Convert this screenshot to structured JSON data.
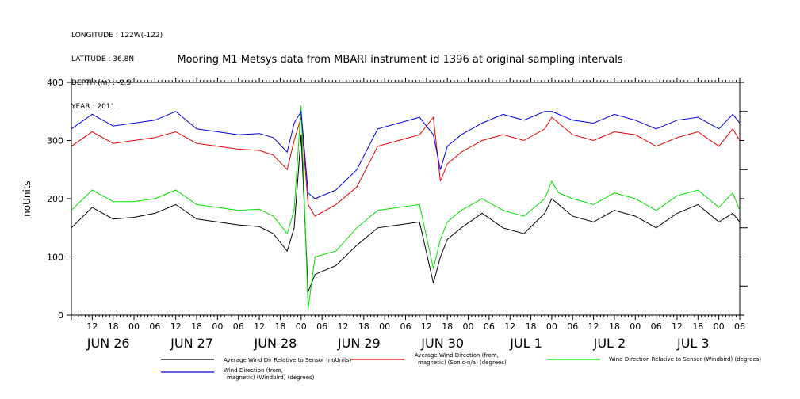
{
  "header": {
    "meta_lines": [
      "LONGITUDE : 122W(-122)",
      "LATITUDE : 36.8N",
      "DEPTH (m) : -2.5",
      "YEAR : 2011"
    ],
    "title": "Mooring M1 Metsys data from MBARI instrument id 1396 at original sampling intervals"
  },
  "colors": {
    "black": "#000000",
    "red": "#e00000",
    "green": "#00e000",
    "blue": "#0000e0"
  },
  "chart_data": {
    "type": "line",
    "ylabel": "noUnits",
    "ylim": [
      0,
      400
    ],
    "yticks": [
      0,
      100,
      200,
      300,
      400
    ],
    "xlim_hours": [
      0,
      192
    ],
    "x_hour_labels": [
      "12",
      "18",
      "00",
      "06",
      "12",
      "18",
      "00",
      "06",
      "12",
      "18",
      "00",
      "06",
      "12",
      "18",
      "00",
      "06",
      "12",
      "18",
      "00",
      "06",
      "12",
      "18",
      "00",
      "06",
      "12",
      "18",
      "00",
      "06",
      "12",
      "18",
      "00",
      "06"
    ],
    "x_day_labels": [
      "JUN 26",
      "JUN 27",
      "JUN 28",
      "JUN 29",
      "JUN 30",
      "JUL  1",
      "JUL  2",
      "JUL  3"
    ],
    "series": [
      {
        "name": "Average Wind Dir Relative to Sensor (noUnits)",
        "color": "#000000",
        "x": [
          0,
          6,
          12,
          18,
          24,
          30,
          36,
          42,
          48,
          54,
          58,
          62,
          64,
          66,
          68,
          70,
          76,
          82,
          88,
          94,
          100,
          104,
          106,
          108,
          112,
          118,
          124,
          130,
          136,
          138,
          140,
          144,
          150,
          156,
          162,
          168,
          174,
          180,
          186,
          190,
          192
        ],
        "y": [
          150,
          185,
          165,
          168,
          175,
          190,
          165,
          160,
          155,
          152,
          140,
          110,
          150,
          310,
          40,
          70,
          85,
          120,
          150,
          155,
          160,
          55,
          100,
          130,
          150,
          175,
          150,
          140,
          175,
          200,
          190,
          170,
          160,
          180,
          170,
          150,
          175,
          190,
          160,
          175,
          160
        ]
      },
      {
        "name": "Average Wind Direction (from, magnetic) (Sonic-n/a) (degrees)",
        "color": "#e00000",
        "x": [
          0,
          6,
          12,
          18,
          24,
          30,
          36,
          42,
          48,
          54,
          58,
          62,
          64,
          66,
          68,
          70,
          76,
          82,
          88,
          94,
          100,
          104,
          106,
          108,
          112,
          118,
          124,
          130,
          136,
          138,
          140,
          144,
          150,
          156,
          162,
          168,
          174,
          180,
          186,
          190,
          192
        ],
        "y": [
          290,
          315,
          295,
          300,
          305,
          315,
          295,
          290,
          285,
          283,
          275,
          250,
          300,
          340,
          190,
          170,
          190,
          220,
          290,
          300,
          310,
          340,
          230,
          260,
          280,
          300,
          310,
          300,
          320,
          340,
          330,
          310,
          300,
          315,
          310,
          290,
          305,
          315,
          290,
          320,
          300
        ]
      },
      {
        "name": "Wind Direction Relative to Sensor (Windbird) (degrees)",
        "color": "#00e000",
        "x": [
          0,
          6,
          12,
          18,
          24,
          30,
          36,
          42,
          48,
          54,
          58,
          62,
          64,
          66,
          68,
          70,
          76,
          82,
          88,
          94,
          100,
          104,
          106,
          108,
          112,
          118,
          124,
          130,
          136,
          138,
          140,
          144,
          150,
          156,
          162,
          168,
          174,
          180,
          186,
          190,
          192
        ],
        "y": [
          180,
          215,
          195,
          195,
          200,
          215,
          190,
          185,
          180,
          182,
          170,
          140,
          180,
          360,
          10,
          100,
          110,
          150,
          180,
          185,
          190,
          80,
          130,
          160,
          180,
          200,
          180,
          170,
          200,
          230,
          210,
          200,
          190,
          210,
          200,
          180,
          205,
          215,
          185,
          210,
          180
        ]
      },
      {
        "name": "Wind Direction (from, magnetic) (Windbird) (degrees)",
        "color": "#0000e0",
        "x": [
          0,
          6,
          12,
          18,
          24,
          30,
          36,
          42,
          48,
          54,
          58,
          62,
          64,
          66,
          68,
          70,
          76,
          82,
          88,
          94,
          100,
          104,
          106,
          108,
          112,
          118,
          124,
          130,
          136,
          138,
          140,
          144,
          150,
          156,
          162,
          168,
          174,
          180,
          186,
          190,
          192
        ],
        "y": [
          320,
          345,
          325,
          330,
          335,
          350,
          320,
          315,
          310,
          312,
          305,
          280,
          330,
          350,
          210,
          200,
          215,
          250,
          320,
          330,
          340,
          310,
          250,
          290,
          310,
          330,
          345,
          335,
          350,
          350,
          345,
          335,
          330,
          345,
          335,
          320,
          335,
          340,
          320,
          345,
          330
        ]
      }
    ]
  },
  "legend": [
    {
      "label_lines": [
        "Average Wind Dir Relative to Sensor (noUnits)"
      ]
    },
    {
      "label_lines": [
        "Average Wind Direction (from,",
        "magnetic) (Sonic-n/a) (degrees)"
      ]
    },
    {
      "label_lines": [
        "Wind Direction Relative to Sensor (Windbird) (degrees)"
      ]
    },
    {
      "label_lines": [
        "Wind Direction (from,",
        "magnetic) (Windbird) (degrees)"
      ]
    }
  ]
}
